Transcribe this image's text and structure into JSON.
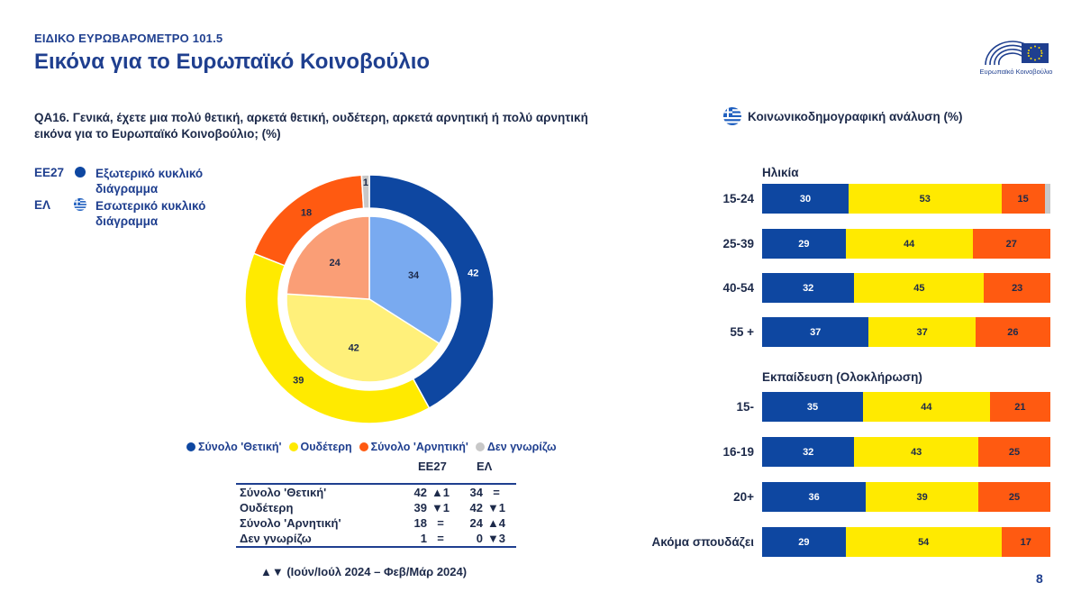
{
  "header": {
    "kicker": "ΕΙΔΙΚΟ ΕΥΡΩΒΑΡΟΜΕΤΡΟ 101.5",
    "title": "Εικόνα για το Ευρωπαϊκό Κοινοβούλιο",
    "logo_text": "Ευρωπαϊκό Κοινοβούλιο",
    "logo_icon": "eu-parliament-logo-icon"
  },
  "question": {
    "line1": "QA16. Γενικά, έχετε μια πολύ θετική, αρκετά θετική, ουδέτερη, αρκετά αρνητική ή πολύ αρνητική",
    "line2": "εικόνα για το Ευρωπαϊκό Κοινοβούλιο; (%)"
  },
  "ring_legend": {
    "outer_code": "ΕΕ27",
    "outer_line1": "Εξωτερικό κυκλικό",
    "outer_line2": "διάγραμμα",
    "inner_code": "ΕΛ",
    "inner_line1": "Εσωτερικό κυκλικό",
    "inner_line2": "διάγραμμα"
  },
  "colors": {
    "positive": "#0e47a1",
    "neutral": "#ffea00",
    "negative": "#ff5a11",
    "dontknow": "#c8c8c8",
    "inner_positive": "#79aaf0",
    "inner_neutral": "#fff07a",
    "inner_negative": "#fa9e76",
    "accent": "#1f3f8f"
  },
  "chart_data": [
    {
      "type": "pie",
      "title": "",
      "categories": [
        "Σύνολο 'Θετική'",
        "Ουδέτερη",
        "Σύνολο 'Αρνητική'",
        "Δεν γνωρίζω"
      ],
      "series": [
        {
          "name": "ΕΕ27",
          "values": [
            42,
            39,
            18,
            1
          ],
          "labels": [
            "42",
            "39",
            "18",
            "1"
          ]
        },
        {
          "name": "ΕΛ",
          "values": [
            34,
            42,
            24,
            0
          ],
          "labels": [
            "34",
            "42",
            "24",
            ""
          ]
        }
      ],
      "legend": [
        "Σύνολο 'Θετική'",
        "Ουδέτερη",
        "Σύνολο 'Αρνητική'",
        "Δεν γνωρίζω"
      ]
    },
    {
      "type": "bar",
      "orientation": "horizontal",
      "stacked": true,
      "title": "Κοινωνικοδημογραφική ανάλυση (%)",
      "groups": [
        {
          "title": "Ηλικία",
          "rows": [
            {
              "label": "15-24",
              "values": [
                30,
                53,
                15,
                2
              ],
              "labels": [
                "30",
                "53",
                "15",
                ""
              ]
            },
            {
              "label": "25-39",
              "values": [
                29,
                44,
                27,
                0
              ],
              "labels": [
                "29",
                "44",
                "27",
                ""
              ]
            },
            {
              "label": "40-54",
              "values": [
                32,
                45,
                23,
                0
              ],
              "labels": [
                "32",
                "45",
                "23",
                ""
              ]
            },
            {
              "label": "55 +",
              "values": [
                37,
                37,
                26,
                0
              ],
              "labels": [
                "37",
                "37",
                "26",
                ""
              ]
            }
          ]
        },
        {
          "title": "Εκπαίδευση (Ολοκλήρωση)",
          "rows": [
            {
              "label": "15-",
              "values": [
                35,
                44,
                21,
                0
              ],
              "labels": [
                "35",
                "44",
                "21",
                ""
              ]
            },
            {
              "label": "16-19",
              "values": [
                32,
                43,
                25,
                0
              ],
              "labels": [
                "32",
                "43",
                "25",
                ""
              ]
            },
            {
              "label": "20+",
              "values": [
                36,
                39,
                25,
                0
              ],
              "labels": [
                "36",
                "39",
                "25",
                ""
              ]
            },
            {
              "label": "Ακόμα σπουδάζει",
              "values": [
                29,
                54,
                17,
                0
              ],
              "labels": [
                "29",
                "54",
                "17",
                ""
              ]
            }
          ]
        }
      ]
    }
  ],
  "table": {
    "col_eu": "ΕΕ27",
    "col_gr": "ΕΛ",
    "rows": [
      {
        "label": "Σύνολο 'Θετική'",
        "eu": "42",
        "eu_trend": "▲1",
        "gr": "34",
        "gr_trend": "="
      },
      {
        "label": "Ουδέτερη",
        "eu": "39",
        "eu_trend": "▼1",
        "gr": "42",
        "gr_trend": "▼1"
      },
      {
        "label": "Σύνολο 'Αρνητική'",
        "eu": "18",
        "eu_trend": "=",
        "gr": "24",
        "gr_trend": "▲4"
      },
      {
        "label": "Δεν γνωρίζω",
        "eu": "1",
        "eu_trend": "=",
        "gr": "0",
        "gr_trend": "▼3"
      }
    ]
  },
  "footnote": "▲▼ (Ιούν/Ιούλ 2024 – Φεβ/Μάρ 2024)",
  "socio_icon": "greek-flag-icon",
  "page_number": "8"
}
